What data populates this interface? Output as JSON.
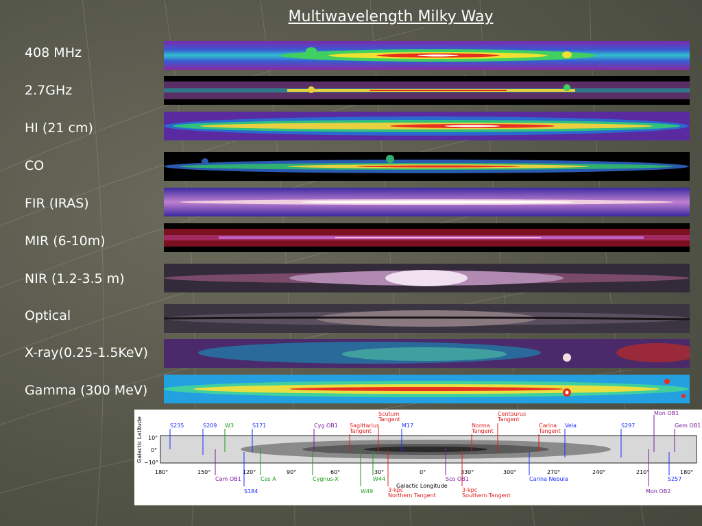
{
  "title": "Multiwavelength Milky Way",
  "bands": [
    {
      "label": "408 MHz",
      "color": "#5a3fbf"
    },
    {
      "label": "2.7GHz",
      "color": "#5e2f6a"
    },
    {
      "label": "HI (21 cm)",
      "color": "#5a2aa0"
    },
    {
      "label": "CO",
      "color": "#000000"
    },
    {
      "label": "FIR (IRAS)",
      "color": "#4a2f9a"
    },
    {
      "label": "MIR (6-10m)",
      "color": "#7a1020"
    },
    {
      "label": "NIR (1.2-3.5 m)",
      "color": "#332a3a"
    },
    {
      "label": "Optical",
      "color": "#3a3540"
    },
    {
      "label": "X-ray(0.25-1.5KeV)",
      "color": "#4a2a6a"
    },
    {
      "label": "Gamma (300 MeV)",
      "color": "#22a0e0"
    }
  ],
  "map": {
    "y_axis_label": "Galactic Latitude",
    "y_ticks": [
      "10°",
      "0°",
      "−10°"
    ],
    "x_axis_label": "Galactic Longitude",
    "x_ticks": [
      "180°",
      "150°",
      "120°",
      "90°",
      "60°",
      "30°",
      "0°",
      "330°",
      "300°",
      "270°",
      "240°",
      "210°",
      "180°"
    ],
    "top_markers": [
      {
        "text": "S235",
        "color": "#1a2aff"
      },
      {
        "text": "S209",
        "color": "#1a2aff"
      },
      {
        "text": "W3",
        "color": "#1a9a1a"
      },
      {
        "text": "S171",
        "color": "#1a2aff"
      },
      {
        "text": "Cyg OB1",
        "color": "#7a1aa0"
      },
      {
        "text": "Sagittarius",
        "color": "#e01a1a"
      },
      {
        "text": "Tangent",
        "color": "#e01a1a"
      },
      {
        "text": "Scutum",
        "color": "#e01a1a"
      },
      {
        "text": "Tangent",
        "color": "#e01a1a"
      },
      {
        "text": "M17",
        "color": "#1a2aff"
      },
      {
        "text": "Norma",
        "color": "#e01a1a"
      },
      {
        "text": "Tangent",
        "color": "#e01a1a"
      },
      {
        "text": "Centaurus",
        "color": "#e01a1a"
      },
      {
        "text": "Tangent",
        "color": "#e01a1a"
      },
      {
        "text": "Carina",
        "color": "#e01a1a"
      },
      {
        "text": "Tangent",
        "color": "#e01a1a"
      },
      {
        "text": "Vela",
        "color": "#1a2aff"
      },
      {
        "text": "S297",
        "color": "#1a2aff"
      },
      {
        "text": "Mon OB1",
        "color": "#7a1aa0"
      },
      {
        "text": "Gem OB1",
        "color": "#7a1aa0"
      }
    ],
    "bottom_markers": [
      {
        "text": "Cam OB1",
        "color": "#7a1aa0"
      },
      {
        "text": "S184",
        "color": "#1a2aff"
      },
      {
        "text": "Cas A",
        "color": "#1a9a1a"
      },
      {
        "text": "Cygnus-X",
        "color": "#1a9a1a"
      },
      {
        "text": "W44",
        "color": "#1a9a1a"
      },
      {
        "text": "W49",
        "color": "#1a9a1a"
      },
      {
        "text": "3-kpc",
        "color": "#e01a1a"
      },
      {
        "text": "Northern Tangent",
        "color": "#e01a1a"
      },
      {
        "text": "Sco OB1",
        "color": "#7a1aa0"
      },
      {
        "text": "3-kpc",
        "color": "#e01a1a"
      },
      {
        "text": "Southern Tangent",
        "color": "#e01a1a"
      },
      {
        "text": "Carina Nebula",
        "color": "#1a2aff"
      },
      {
        "text": "Mon OB2",
        "color": "#7a1aa0"
      },
      {
        "text": "S257",
        "color": "#1a2aff"
      }
    ]
  }
}
